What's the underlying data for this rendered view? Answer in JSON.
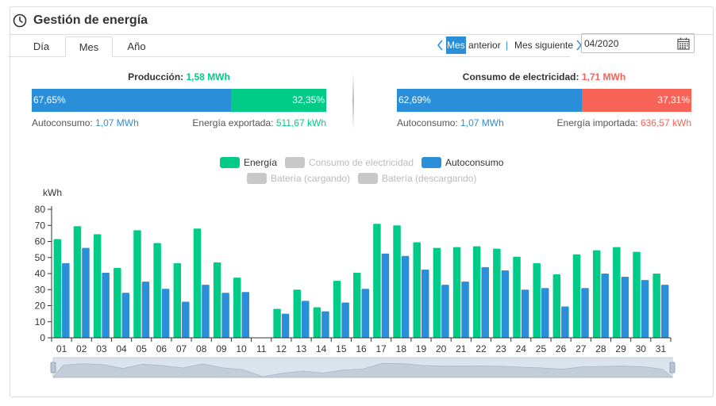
{
  "header": {
    "title": "Gestión de energía",
    "icon": "clock-icon"
  },
  "tabs": [
    {
      "label": "Día",
      "active": false
    },
    {
      "label": "Mes",
      "active": true
    },
    {
      "label": "Año",
      "active": false
    }
  ],
  "nav": {
    "prev_highlight": "Mes",
    "prev_rest": " anterior",
    "separator": "|",
    "next_label": "Mes siguiente",
    "date_value": "04/2020"
  },
  "summary": {
    "production": {
      "label": "Producción:",
      "value": "1,58 MWh",
      "left_pct": "67,65%",
      "right_pct": "32,35%",
      "left_fraction": 0.6765,
      "left_caption": "Autoconsumo:",
      "left_value": "1,07 MWh",
      "right_caption": "Energía exportada:",
      "right_value": "511,67 kWh"
    },
    "consumption": {
      "label": "Consumo de electricidad:",
      "value": "1,71 MWh",
      "left_pct": "62,69%",
      "right_pct": "37,31%",
      "left_fraction": 0.6269,
      "left_caption": "Autoconsumo:",
      "left_value": "1,07 MWh",
      "right_caption": "Energía importada:",
      "right_value": "636,57 kWh"
    }
  },
  "legend": [
    {
      "label": "Energía",
      "color": "#00cc88",
      "active": true
    },
    {
      "label": "Consumo de electricidad",
      "color": "#c8c8c8",
      "active": false
    },
    {
      "label": "Autoconsumo",
      "color": "#2a8fd8",
      "active": true
    },
    {
      "label": "Batería (cargando)",
      "color": "#c8c8c8",
      "active": false
    },
    {
      "label": "Batería (descargando)",
      "color": "#c8c8c8",
      "active": false
    }
  ],
  "colors": {
    "energy": "#00cc88",
    "self": "#2a8fd8",
    "export": "#00cc88",
    "import": "#f86358",
    "inactive": "#c8c8c8"
  },
  "chart_data": {
    "type": "bar",
    "ylabel": "kWh",
    "ylim": [
      0,
      80
    ],
    "yticks": [
      0,
      10,
      20,
      30,
      40,
      50,
      60,
      70,
      80
    ],
    "categories": [
      "01",
      "02",
      "03",
      "04",
      "05",
      "06",
      "07",
      "08",
      "09",
      "10",
      "11",
      "12",
      "13",
      "14",
      "15",
      "16",
      "17",
      "18",
      "19",
      "20",
      "21",
      "22",
      "23",
      "24",
      "25",
      "26",
      "27",
      "28",
      "29",
      "30",
      "31"
    ],
    "series": [
      {
        "name": "Energía",
        "values": [
          61.5,
          69.5,
          64.5,
          43.5,
          67,
          59,
          46.5,
          68,
          47,
          37.5,
          0,
          18,
          30,
          19,
          35.5,
          40.5,
          71,
          70,
          59.5,
          56,
          56.5,
          57,
          55.5,
          50.5,
          46.5,
          39.5,
          52,
          54.5,
          56.5,
          53.5,
          40
        ]
      },
      {
        "name": "Autoconsumo",
        "values": [
          46.5,
          56,
          40.5,
          28,
          35,
          30.5,
          22.5,
          33,
          28,
          28.5,
          0,
          15,
          23,
          16.5,
          22,
          30.5,
          52.5,
          51,
          42.5,
          33,
          35,
          44,
          42,
          30,
          31,
          19.5,
          31,
          40,
          38,
          36,
          33
        ]
      }
    ]
  }
}
